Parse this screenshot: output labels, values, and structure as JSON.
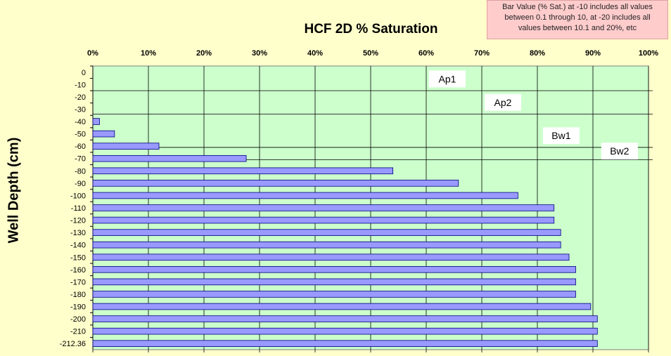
{
  "note": {
    "lines": [
      "Bar Value (% Sat.) at -10 includes all values",
      "between 0.1 through 10, at -20 includes all",
      "values between 10.1 and 20%, etc"
    ]
  },
  "colors": {
    "background": "#ffffcc",
    "plot_area": "#ccffcc",
    "bar_fill": "#9999ff",
    "bar_stroke": "#000080",
    "note_bg": "#ffcccc"
  },
  "chart_data": {
    "type": "bar",
    "orientation": "horizontal",
    "title": "HCF 2D % Saturation",
    "xlabel": "",
    "ylabel": "Well Depth (cm)",
    "xlim": [
      0,
      100
    ],
    "x_ticks": [
      "0%",
      "10%",
      "20%",
      "30%",
      "40%",
      "50%",
      "60%",
      "70%",
      "80%",
      "90%",
      "100%"
    ],
    "grid": true,
    "categories": [
      "0",
      "-10",
      "-20",
      "-30",
      "-40",
      "-50",
      "-60",
      "-70",
      "-80",
      "-90",
      "-100",
      "-110",
      "-120",
      "-130",
      "-140",
      "-150",
      "-160",
      "-170",
      "-180",
      "-190",
      "-200",
      "-210",
      "-212.36"
    ],
    "values": [
      0,
      0,
      0,
      0,
      1.2,
      3.9,
      11.9,
      27.6,
      54.0,
      65.8,
      76.5,
      83.0,
      83.0,
      84.2,
      84.2,
      85.7,
      86.9,
      86.9,
      86.9,
      89.6,
      90.8,
      90.8,
      90.8
    ],
    "horizons": [
      {
        "label": "Ap1",
        "boundary_depth": -15
      },
      {
        "label": "Ap2",
        "boundary_depth": -34
      },
      {
        "label": "Bw1",
        "boundary_depth": -61
      },
      {
        "label": "Bw2",
        "boundary_depth": -71
      }
    ]
  }
}
